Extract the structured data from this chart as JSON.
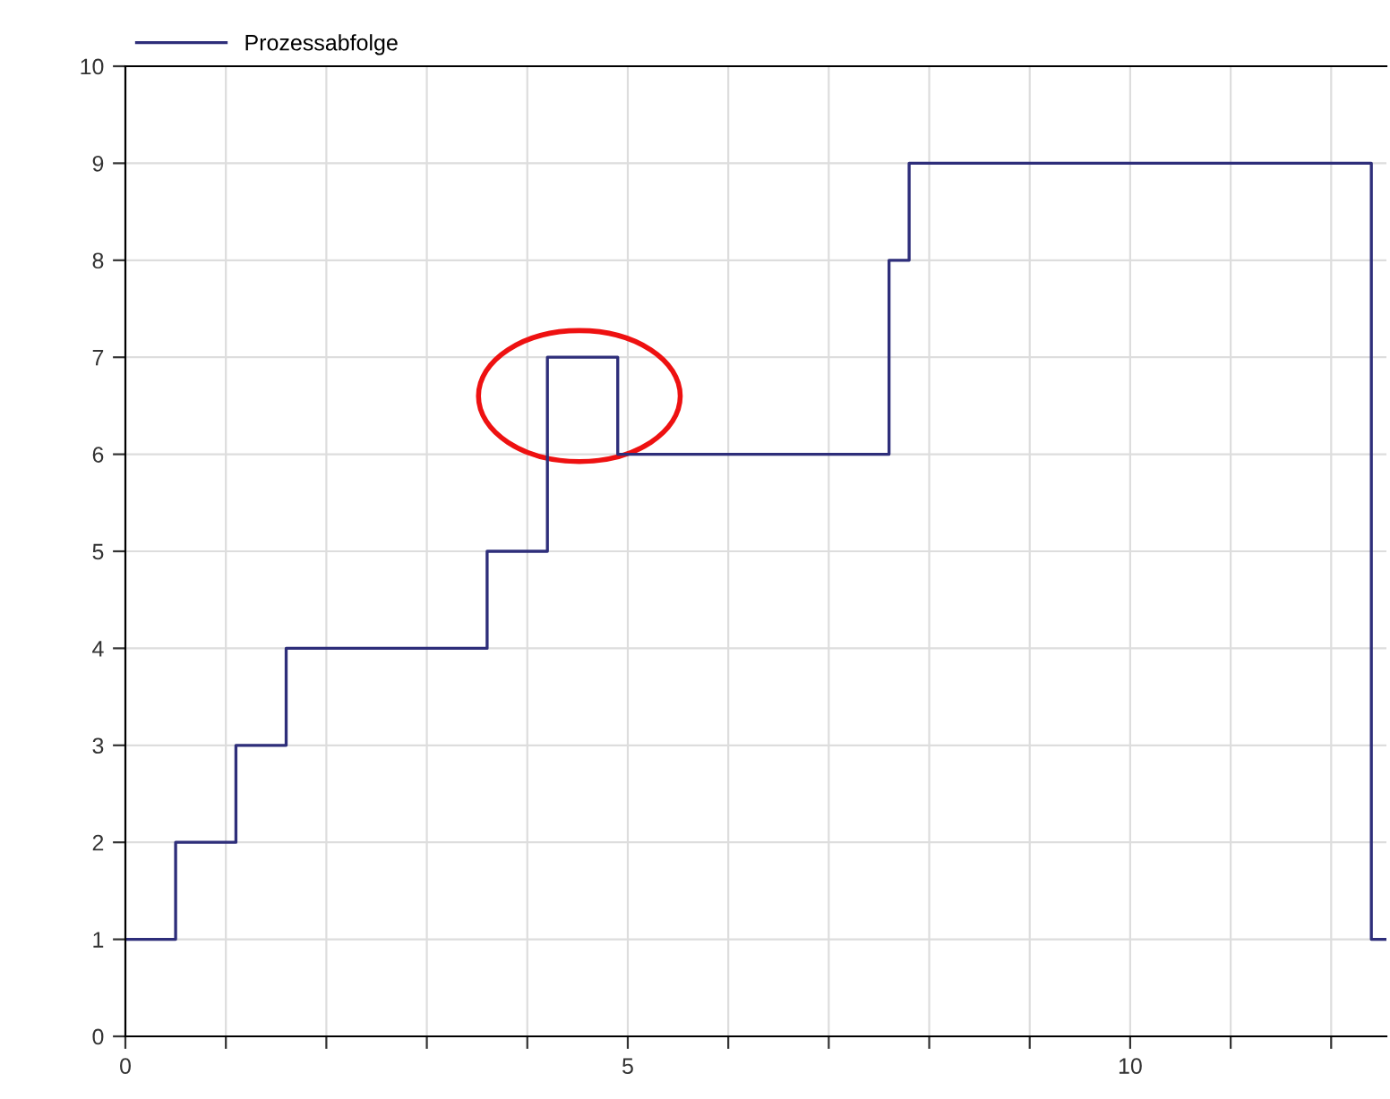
{
  "chart_data": {
    "type": "step",
    "x": [
      0,
      0.5,
      1.1,
      1.6,
      3.6,
      4.2,
      4.9,
      7.6,
      7.8,
      12.4,
      12.55
    ],
    "series": [
      {
        "name": "Prozessabfolge",
        "color": "#2e2e7a",
        "values": [
          1,
          2,
          3,
          4,
          5,
          7,
          6,
          8,
          9,
          1,
          1
        ]
      }
    ],
    "xlim": [
      0,
      12.55
    ],
    "xticks": [
      0,
      {
        "value": 1,
        "label": null
      },
      {
        "value": 2,
        "label": null
      },
      {
        "value": 3,
        "label": null
      },
      {
        "value": 4,
        "label": null
      },
      5,
      {
        "value": 6,
        "label": null
      },
      {
        "value": 7,
        "label": null
      },
      {
        "value": 8,
        "label": null
      },
      {
        "value": 9,
        "label": null
      },
      10,
      {
        "value": 11,
        "label": null
      },
      {
        "value": 12,
        "label": null
      }
    ],
    "ylim": [
      0,
      10
    ],
    "yticks": [
      0,
      1,
      2,
      3,
      4,
      5,
      6,
      7,
      8,
      9,
      10
    ],
    "grid": true,
    "legend": "top left",
    "line_style": "solid",
    "marker": "none"
  }
}
